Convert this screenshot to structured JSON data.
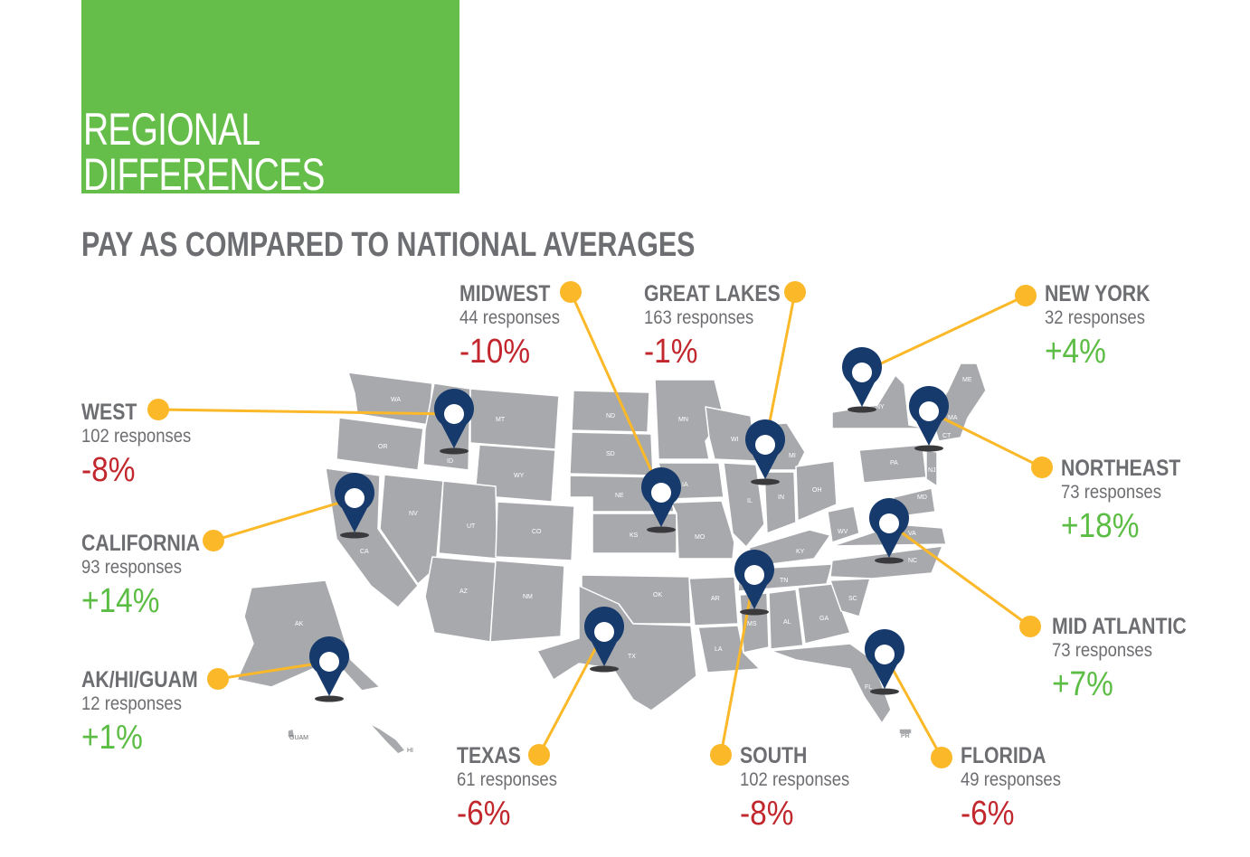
{
  "header": {
    "title_line1": "REGIONAL",
    "title_line2": "DIFFERENCES",
    "subtitle": "PAY AS COMPARED TO NATIONAL AVERAGES"
  },
  "colors": {
    "brand_green": "#66be4a",
    "map_gray": "#a7a9ac",
    "pin_navy": "#163a6b",
    "connector_yellow": "#fbb829",
    "negative_red": "#c1272d",
    "positive_green": "#5cbd45"
  },
  "regions": [
    {
      "name": "WEST",
      "responses": "102 responses",
      "change": "-8%",
      "direction": "negative"
    },
    {
      "name": "CALIFORNIA",
      "responses": "93 responses",
      "change": "+14%",
      "direction": "positive"
    },
    {
      "name": "AK/HI/GUAM",
      "responses": "12 responses",
      "change": "+1%",
      "direction": "positive"
    },
    {
      "name": "MIDWEST",
      "responses": "44 responses",
      "change": "-10%",
      "direction": "negative"
    },
    {
      "name": "GREAT LAKES",
      "responses": "163 responses",
      "change": "-1%",
      "direction": "negative"
    },
    {
      "name": "NEW YORK",
      "responses": "32 responses",
      "change": "+4%",
      "direction": "positive"
    },
    {
      "name": "NORTHEAST",
      "responses": "73 responses",
      "change": "+18%",
      "direction": "positive"
    },
    {
      "name": "MID ATLANTIC",
      "responses": "73 responses",
      "change": "+7%",
      "direction": "positive"
    },
    {
      "name": "TEXAS",
      "responses": "61 responses",
      "change": "-6%",
      "direction": "negative"
    },
    {
      "name": "SOUTH",
      "responses": "102 responses",
      "change": "-8%",
      "direction": "negative"
    },
    {
      "name": "FLORIDA",
      "responses": "49 responses",
      "change": "-6%",
      "direction": "negative"
    }
  ],
  "state_labels": {
    "WA": "WA",
    "OR": "OR",
    "CA": "CA",
    "ID": "ID",
    "MT": "MT",
    "WY": "WY",
    "NV": "NV",
    "UT": "UT",
    "CO": "CO",
    "AZ": "AZ",
    "NM": "NM",
    "ND": "ND",
    "SD": "SD",
    "NE": "NE",
    "KS": "KS",
    "OK": "OK",
    "TX": "TX",
    "MN": "MN",
    "IA": "IA",
    "MO": "MO",
    "AR": "AR",
    "LA": "LA",
    "WI": "WI",
    "IL": "IL",
    "MI": "MI",
    "IN": "IN",
    "OH": "OH",
    "KY": "KY",
    "TN": "TN",
    "MS": "MS",
    "AL": "AL",
    "GA": "GA",
    "FL": "FL",
    "SC": "SC",
    "NC": "NC",
    "VA": "VA",
    "WV": "WV",
    "PA": "PA",
    "NY": "NY",
    "NJ": "NJ",
    "CT": "CT",
    "MA": "MA",
    "ME": "ME",
    "MD": "MD",
    "AK": "AK",
    "HI": "HI",
    "GUAM": "GUAM",
    "PR": "PR"
  }
}
